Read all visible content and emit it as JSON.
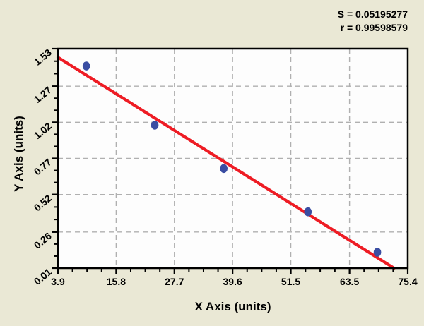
{
  "stats": {
    "s_line": "S = 0.05195277",
    "r_line": "r = 0.99598579"
  },
  "chart_data": {
    "type": "scatter",
    "title": "",
    "xlabel": "X Axis (units)",
    "ylabel": "Y Axis (units)",
    "xlim": [
      3.9,
      75.4
    ],
    "ylim": [
      0.01,
      1.53
    ],
    "x_ticks": [
      3.9,
      15.8,
      27.7,
      39.6,
      51.5,
      63.5,
      75.4
    ],
    "y_ticks": [
      1.53,
      1.27,
      1.02,
      0.77,
      0.52,
      0.26,
      0.01
    ],
    "x_minor_per_interval": 3,
    "y_minor_per_interval": 2,
    "grid": "dashed",
    "legend": "none",
    "points": [
      [
        9.7,
        1.41
      ],
      [
        23.7,
        1.0
      ],
      [
        37.8,
        0.7
      ],
      [
        55.0,
        0.4
      ],
      [
        69.2,
        0.12
      ]
    ],
    "fit_line": {
      "x1": 3.9,
      "y1": 1.47,
      "x2": 72.6,
      "y2": 0.01
    },
    "annotations": [
      "S = 0.05195277",
      "r = 0.99598579"
    ],
    "colors": {
      "background": "#eae8d5",
      "plot_bg": "#fdfdfd",
      "point": "#3a4da2",
      "line": "#ee1c24",
      "grid": "#b0b0b0",
      "axis": "#000000",
      "text": "#000000"
    }
  }
}
